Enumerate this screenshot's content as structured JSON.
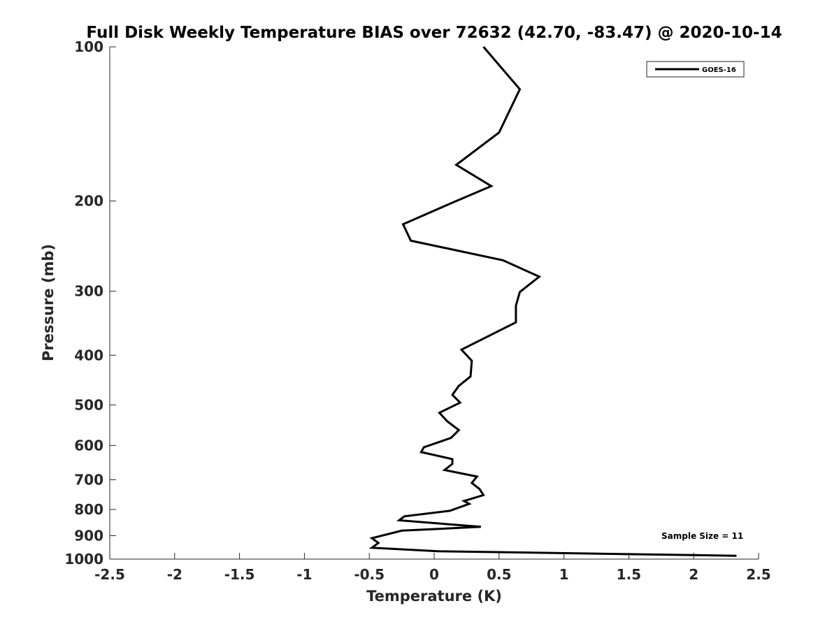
{
  "chart_data": {
    "type": "line",
    "title": "Full Disk Weekly Temperature BIAS over 72632 (42.70, -83.47) @ 2020-10-14",
    "xlabel": "Temperature (K)",
    "ylabel": "Pressure (mb)",
    "xlim": [
      -2.5,
      2.5
    ],
    "ylim": [
      100,
      1000
    ],
    "y_scale": "log",
    "y_reversed": true,
    "x_ticks": [
      "-2.5",
      "-2",
      "-1.5",
      "-1",
      "-0.5",
      "0",
      "0.5",
      "1",
      "1.5",
      "2",
      "2.5"
    ],
    "y_ticks": [
      "100",
      "200",
      "300",
      "400",
      "500",
      "600",
      "700",
      "800",
      "900",
      "1000"
    ],
    "grid": false,
    "legend_position": "top-right",
    "line_color": "#000000",
    "series": [
      {
        "name": "GOES-16",
        "x": [
          0.38,
          0.66,
          0.5,
          0.17,
          0.44,
          0.15,
          -0.24,
          -0.18,
          0.53,
          0.81,
          0.66,
          0.63,
          0.63,
          0.21,
          0.29,
          0.28,
          0.19,
          0.14,
          0.2,
          0.04,
          0.1,
          0.19,
          0.13,
          -0.08,
          -0.1,
          0.14,
          0.14,
          0.08,
          0.33,
          0.29,
          0.35,
          0.38,
          0.23,
          0.27,
          0.12,
          -0.23,
          -0.27,
          0.36,
          -0.25,
          -0.48,
          -0.43,
          -0.48,
          0.03,
          2.33
        ],
        "y": [
          100,
          121,
          147,
          170,
          187,
          201,
          222,
          239,
          261,
          281,
          301,
          320,
          345,
          390,
          410,
          440,
          459,
          478,
          495,
          518,
          538,
          560,
          580,
          605,
          618,
          638,
          652,
          670,
          690,
          710,
          730,
          750,
          770,
          780,
          805,
          825,
          840,
          865,
          880,
          910,
          930,
          950,
          965,
          985
        ]
      }
    ],
    "annotation": "Sample Size = 11"
  }
}
